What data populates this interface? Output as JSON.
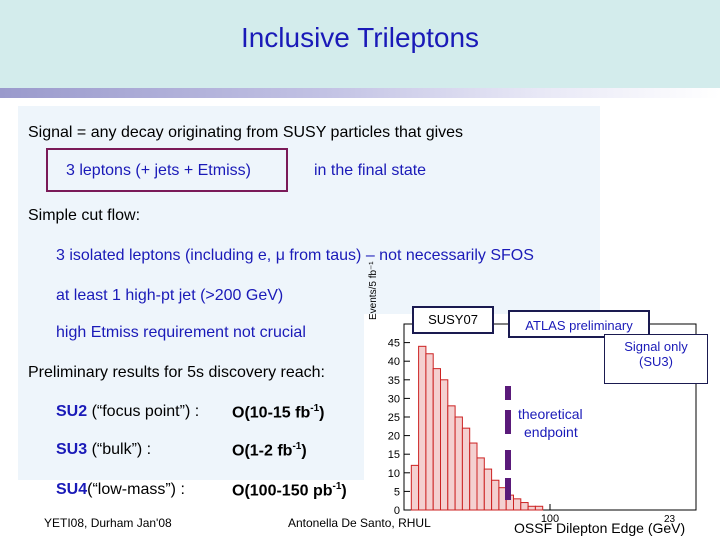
{
  "slide": {
    "title": "Inclusive Trileptons",
    "signal_line": "Signal = any decay originating from SUSY particles that gives",
    "boxed_phrase": "3 leptons (+ jets + Etmiss)",
    "final_state": "in the final state",
    "cut_flow_heading": "Simple cut flow:",
    "cuts": [
      "3 isolated leptons (including e, μ from taus) – not necessarily SFOS",
      "at least 1 high-pt jet (>200 GeV)",
      "high Etmiss requirement not crucial"
    ],
    "results_heading": "Preliminary results for 5s discovery reach:",
    "results": [
      {
        "point": "SU2",
        "desc": " (“focus point”) :",
        "reach_pre": "O(10-15 fb",
        "exp": "-1",
        "reach_post": ")"
      },
      {
        "point": "SU3",
        "desc": " (“bulk”) :",
        "reach_pre": "O(1-2 fb",
        "exp": "-1",
        "reach_post": ")"
      },
      {
        "point": "SU4",
        "desc": "(“low-mass”) :",
        "reach_pre": "O(100-150 pb",
        "exp": "-1",
        "reach_post": ")"
      }
    ],
    "colors": {
      "title": "#1a1ab8",
      "box": "#7a1a58",
      "header_band": "#d3ecec"
    }
  },
  "plot": {
    "susy_label": "SUSY07",
    "atlas_label": "ATLAS preliminary",
    "signal_label_1": "Signal only",
    "signal_label_2": "(SU3)",
    "ylabel": "Events/5 fb⁻¹",
    "xlabel": "OSSF Dilepton Edge (GeV)",
    "annotation_1": "theoretical",
    "annotation_2": "endpoint",
    "y_ticks": [
      "45",
      "40",
      "35",
      "30",
      "25",
      "20",
      "15",
      "10",
      "5",
      "0"
    ],
    "x_ticks": [
      "100"
    ]
  },
  "chart_data": {
    "type": "bar",
    "xlabel": "OSSF Dilepton Edge (GeV)",
    "ylabel": "Events/5 fb⁻¹",
    "ylim": [
      0,
      50
    ],
    "xlim": [
      0,
      200
    ],
    "bin_width": 5,
    "x": [
      0,
      5,
      10,
      15,
      20,
      25,
      30,
      35,
      40,
      45,
      50,
      55,
      60,
      65,
      70,
      75,
      80,
      85,
      90,
      95,
      100
    ],
    "values": [
      0,
      12,
      44,
      42,
      38,
      35,
      28,
      25,
      22,
      18,
      14,
      11,
      8,
      6,
      4,
      3,
      2,
      1,
      1,
      0,
      0
    ],
    "annotation": "theoretical endpoint"
  },
  "footer": {
    "left": "YETI08, Durham Jan'08",
    "center": "Antonella De Santo, RHUL",
    "page": "23"
  }
}
